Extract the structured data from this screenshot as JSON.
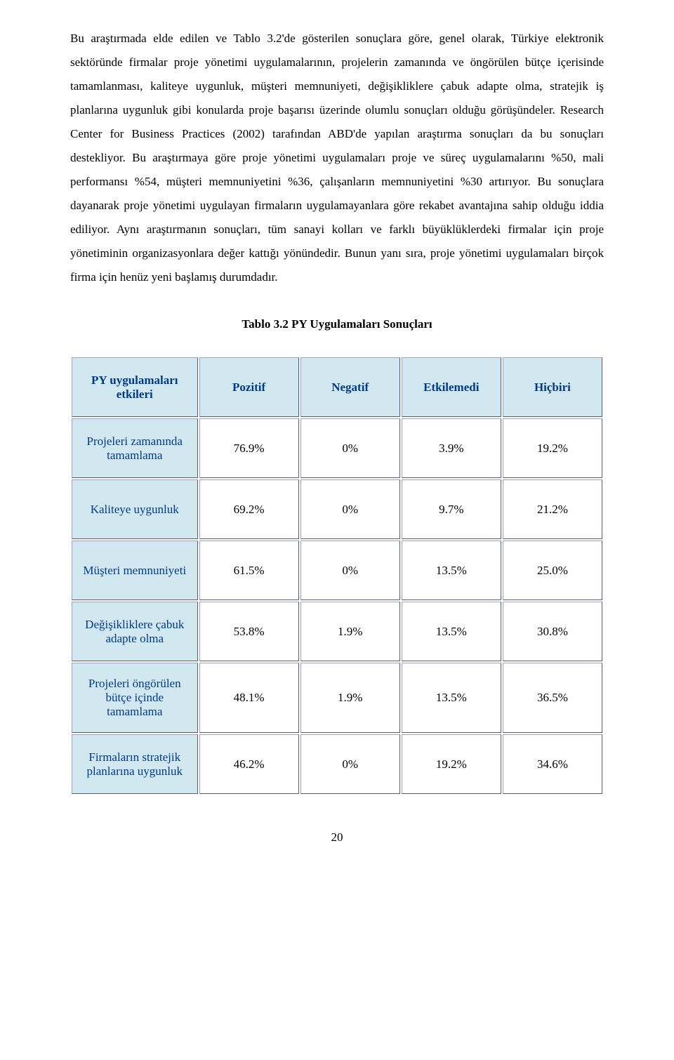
{
  "paragraph": "Bu araştırmada elde edilen ve Tablo 3.2'de gösterilen sonuçlara göre, genel olarak, Türkiye elektronik sektöründe firmalar proje yönetimi uygulamalarının, projelerin zamanında ve öngörülen bütçe içerisinde tamamlanması, kaliteye uygunluk, müşteri memnuniyeti, değişikliklere çabuk adapte olma, stratejik iş planlarına uygunluk gibi konularda proje başarısı üzerinde olumlu sonuçları olduğu görüşündeler. Research Center for Business Practices (2002) tarafından ABD'de yapılan araştırma sonuçları da bu sonuçları destekliyor. Bu araştırmaya göre proje yönetimi uygulamaları proje ve süreç uygulamalarını %50, mali performansı %54, müşteri memnuniyetini %36, çalışanların memnuniyetini %30 artırıyor. Bu sonuçlara dayanarak proje yönetimi uygulayan firmaların uygulamayanlara göre rekabet avantajına sahip olduğu iddia ediliyor. Aynı araştırmanın sonuçları, tüm sanayi kolları ve farklı büyüklüklerdeki firmalar için proje yönetiminin organizasyonlara değer kattığı yönündedir. Bunun yanı sıra, proje yönetimi uygulamaları birçok firma için henüz yeni başlamış durumdadır.",
  "table_title": "Tablo 3.2 PY Uygulamaları Sonuçları",
  "table": {
    "header": [
      "PY uygulamaları etkileri",
      "Pozitif",
      "Negatif",
      "Etkilemedi",
      "Hiçbiri"
    ],
    "rows": [
      {
        "label": "Projeleri zamanında tamamlama",
        "values": [
          "76.9%",
          "0%",
          "3.9%",
          "19.2%"
        ]
      },
      {
        "label": "Kaliteye uygunluk",
        "values": [
          "69.2%",
          "0%",
          "9.7%",
          "21.2%"
        ]
      },
      {
        "label": "Müşteri memnuniyeti",
        "values": [
          "61.5%",
          "0%",
          "13.5%",
          "25.0%"
        ]
      },
      {
        "label": "Değişikliklere çabuk adapte olma",
        "values": [
          "53.8%",
          "1.9%",
          "13.5%",
          "30.8%"
        ]
      },
      {
        "label": "Projeleri öngörülen bütçe içinde tamamlama",
        "values": [
          "48.1%",
          "1.9%",
          "13.5%",
          "36.5%"
        ]
      },
      {
        "label": "Firmaların stratejik planlarına uygunluk",
        "values": [
          "46.2%",
          "0%",
          "19.2%",
          "34.6%"
        ]
      }
    ]
  },
  "page_number": "20",
  "colors": {
    "header_bg": "#d1e8f0",
    "header_text": "#003a8c",
    "cell_bg": "#ffffff",
    "body_text": "#000000"
  }
}
